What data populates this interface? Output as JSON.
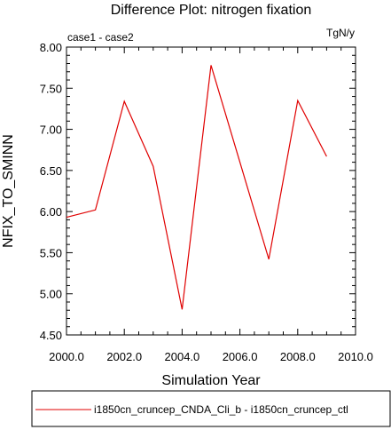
{
  "chart_data": {
    "type": "line",
    "title": "Difference Plot: nitrogen fixation",
    "left_subtitle": "case1 - case2",
    "right_subtitle": "TgN/y",
    "xlabel": "Simulation Year",
    "ylabel": "NFIX_TO_SMINN",
    "xlim": [
      2000,
      2010
    ],
    "ylim": [
      4.5,
      8.0
    ],
    "x_ticks": [
      "2000.0",
      "2002.0",
      "2004.0",
      "2006.0",
      "2008.0",
      "2010.0"
    ],
    "y_ticks": [
      "4.50",
      "5.00",
      "5.50",
      "6.00",
      "6.50",
      "7.00",
      "7.50",
      "8.00"
    ],
    "series": [
      {
        "name": "i1850cn_cruncep_CNDA_Cli_b - i1850cn_cruncep_ctl",
        "color": "#e00000",
        "x": [
          2000,
          2001,
          2002,
          2003,
          2004,
          2005,
          2006,
          2007,
          2008,
          2009
        ],
        "values": [
          5.93,
          6.02,
          7.34,
          6.55,
          4.81,
          7.78,
          6.6,
          5.42,
          7.35,
          6.67
        ]
      }
    ],
    "grid": false,
    "legend_position": "bottom"
  }
}
